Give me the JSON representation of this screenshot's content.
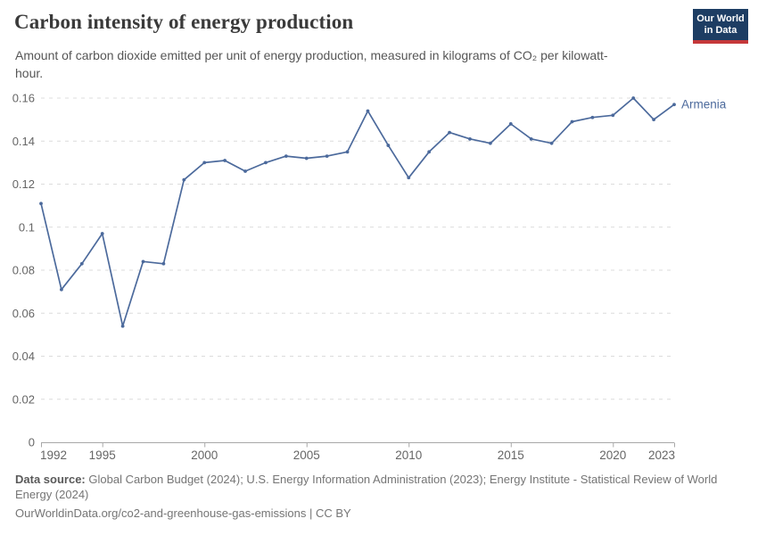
{
  "header": {
    "title": "Carbon intensity of energy production",
    "subtitle": "Amount of carbon dioxide emitted per unit of energy production, measured in kilograms of CO₂ per kilowatt-hour.",
    "logo": {
      "line1": "Our World",
      "line2": "in Data"
    }
  },
  "chart_data": {
    "type": "line",
    "title": "Carbon intensity of energy production",
    "entity_label": "Armenia",
    "series": [
      {
        "name": "Armenia",
        "x": [
          1992,
          1993,
          1994,
          1995,
          1996,
          1997,
          1998,
          1999,
          2000,
          2001,
          2002,
          2003,
          2004,
          2005,
          2006,
          2007,
          2008,
          2009,
          2010,
          2011,
          2012,
          2013,
          2014,
          2015,
          2016,
          2017,
          2018,
          2019,
          2020,
          2021,
          2022,
          2023
        ],
        "values": [
          0.111,
          0.071,
          0.083,
          0.097,
          0.054,
          0.084,
          0.083,
          0.122,
          0.13,
          0.131,
          0.126,
          0.13,
          0.133,
          0.132,
          0.133,
          0.135,
          0.154,
          0.138,
          0.123,
          0.135,
          0.144,
          0.141,
          0.139,
          0.148,
          0.141,
          0.139,
          0.149,
          0.151,
          0.152,
          0.16,
          0.15,
          0.157
        ]
      }
    ],
    "xlim": [
      1992,
      2023
    ],
    "ylim": [
      0,
      0.16
    ],
    "x_ticks": [
      1992,
      1995,
      2000,
      2005,
      2010,
      2015,
      2020,
      2023
    ],
    "y_ticks": [
      0,
      0.02,
      0.04,
      0.06,
      0.08,
      0.1,
      0.12,
      0.14,
      0.16
    ],
    "y_tick_labels": [
      "0",
      "0.02",
      "0.04",
      "0.06",
      "0.08",
      "0.1",
      "0.12",
      "0.14",
      "0.16"
    ],
    "xlabel": "",
    "ylabel": "",
    "grid": "horizontal-dashed",
    "legend_position": "end-of-line-label",
    "line_color": "#4C6A9C"
  },
  "footer": {
    "source_label": "Data source:",
    "sources": "Global Carbon Budget (2024); U.S. Energy Information Administration (2023); Energy Institute - Statistical Review of World Energy (2024)",
    "citation": "OurWorldinData.org/co2-and-greenhouse-gas-emissions | CC BY"
  },
  "colors": {
    "accent_line": "#4C6A9C",
    "logo_background": "#1d3d63",
    "logo_stripe": "#c5383a",
    "gridline": "#dcdcdc",
    "axis": "#a8a8a8",
    "tick_text": "#666666"
  }
}
